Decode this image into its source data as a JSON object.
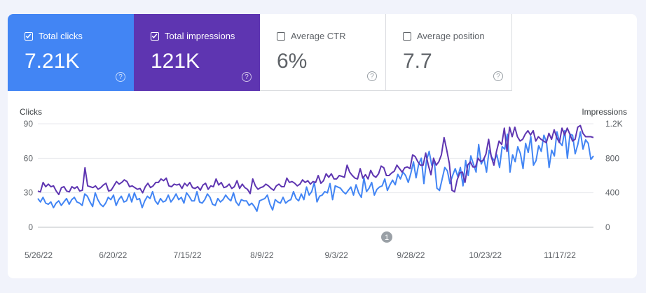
{
  "metrics": [
    {
      "label": "Total clicks",
      "value": "7.21K",
      "checked": true,
      "color": "#4285f4"
    },
    {
      "label": "Total impressions",
      "value": "121K",
      "checked": true,
      "color": "#5e35b1"
    },
    {
      "label": "Average CTR",
      "value": "6%",
      "checked": false
    },
    {
      "label": "Average position",
      "value": "7.7",
      "checked": false
    }
  ],
  "help_glyph": "?",
  "annotation_label": "1",
  "chart_data": {
    "type": "line",
    "ylabel_left": "Clicks",
    "ylabel_right": "Impressions",
    "y_left_ticks": [
      "90",
      "60",
      "30",
      "0"
    ],
    "y_right_ticks": [
      "1.2K",
      "800",
      "400",
      "0"
    ],
    "ylim_left": [
      0,
      90
    ],
    "ylim_right": [
      0,
      1200
    ],
    "x_tick_labels": [
      "5/26/22",
      "6/20/22",
      "7/15/22",
      "8/9/22",
      "9/3/22",
      "9/28/22",
      "10/23/22",
      "11/17/22"
    ],
    "series": [
      {
        "name": "Clicks",
        "axis": "left",
        "color": "#4285f4",
        "values": [
          25,
          22,
          26,
          21,
          20,
          22,
          17,
          21,
          23,
          19,
          22,
          25,
          20,
          24,
          26,
          22,
          21,
          19,
          29,
          27,
          22,
          18,
          30,
          24,
          20,
          18,
          21,
          26,
          24,
          28,
          19,
          24,
          27,
          22,
          23,
          29,
          22,
          30,
          24,
          25,
          17,
          23,
          27,
          25,
          31,
          23,
          20,
          25,
          22,
          23,
          28,
          22,
          25,
          29,
          24,
          26,
          21,
          30,
          27,
          23,
          23,
          31,
          22,
          21,
          24,
          29,
          26,
          20,
          19,
          25,
          22,
          24,
          28,
          25,
          23,
          30,
          22,
          19,
          24,
          23,
          23,
          19,
          21,
          18,
          14,
          23,
          24,
          25,
          28,
          20,
          15,
          24,
          22,
          21,
          26,
          21,
          23,
          24,
          31,
          25,
          23,
          29,
          24,
          35,
          28,
          31,
          39,
          22,
          27,
          28,
          31,
          30,
          38,
          24,
          36,
          35,
          34,
          31,
          29,
          32,
          35,
          28,
          37,
          30,
          26,
          43,
          31,
          34,
          39,
          28,
          33,
          35,
          36,
          42,
          32,
          37,
          41,
          37,
          46,
          42,
          48,
          45,
          39,
          47,
          57,
          43,
          55,
          60,
          38,
          58,
          66,
          54,
          57,
          34,
          32,
          42,
          52,
          49,
          38,
          45,
          51,
          44,
          52,
          36,
          58,
          45,
          62,
          55,
          48,
          72,
          55,
          60,
          48,
          67,
          61,
          58,
          63,
          52,
          70,
          68,
          81,
          48,
          63,
          57,
          70,
          64,
          51,
          73,
          65,
          79,
          54,
          58,
          71,
          66,
          80,
          74,
          52,
          67,
          62,
          83,
          74,
          71,
          84,
          60,
          81,
          80,
          64,
          72,
          83,
          68,
          76,
          73,
          59,
          62
        ]
      },
      {
        "name": "Impressions",
        "axis": "right",
        "color": "#5e35b1",
        "values": [
          420,
          410,
          520,
          470,
          500,
          470,
          480,
          420,
          380,
          460,
          470,
          420,
          410,
          470,
          450,
          470,
          420,
          430,
          690,
          480,
          470,
          460,
          480,
          440,
          460,
          490,
          510,
          420,
          430,
          480,
          530,
          500,
          520,
          550,
          530,
          470,
          480,
          460,
          440,
          450,
          400,
          470,
          510,
          460,
          480,
          520,
          520,
          560,
          540,
          570,
          480,
          470,
          500,
          490,
          500,
          450,
          510,
          480,
          520,
          460,
          450,
          470,
          430,
          490,
          510,
          440,
          480,
          470,
          560,
          490,
          520,
          460,
          470,
          500,
          450,
          470,
          540,
          450,
          500,
          460,
          440,
          390,
          560,
          480,
          440,
          460,
          470,
          500,
          480,
          450,
          430,
          480,
          500,
          470,
          470,
          570,
          520,
          530,
          510,
          480,
          500,
          550,
          520,
          540,
          500,
          530,
          520,
          600,
          510,
          540,
          620,
          580,
          620,
          560,
          560,
          600,
          590,
          580,
          720,
          640,
          600,
          570,
          560,
          680,
          570,
          610,
          560,
          660,
          600,
          580,
          620,
          710,
          690,
          600,
          600,
          630,
          650,
          720,
          680,
          640,
          690,
          700,
          680,
          840,
          820,
          760,
          720,
          720,
          860,
          720,
          610,
          800,
          720,
          760,
          840,
          1040,
          900,
          740,
          430,
          410,
          550,
          630,
          640,
          520,
          720,
          760,
          700,
          700,
          800,
          760,
          780,
          850,
          1020,
          820,
          720,
          880,
          1000,
          960,
          1150,
          880,
          1160,
          1050,
          1160,
          1050,
          1000,
          1020,
          1080,
          1120,
          1070,
          1120,
          1000,
          1050,
          1020,
          1000,
          980,
          1090,
          1020,
          1130,
          1040,
          980,
          1150,
          1070,
          1150,
          1080,
          1000,
          1020,
          1160,
          1180,
          1090,
          1050,
          1050,
          1050,
          1040
        ]
      }
    ],
    "annotation": {
      "label": "1",
      "near_x_tick": "9/28/22"
    }
  }
}
